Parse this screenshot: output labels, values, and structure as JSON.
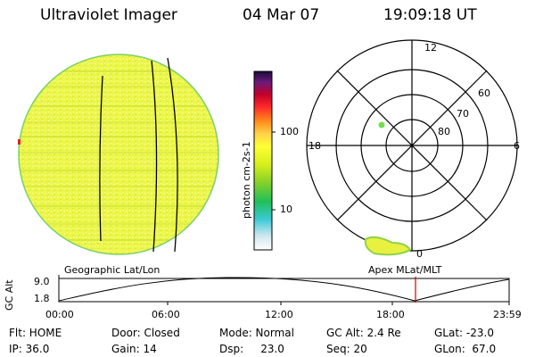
{
  "header": {
    "title": "Ultraviolet Imager",
    "date": "04 Mar 07",
    "time": "19:09:18 UT"
  },
  "colorbar": {
    "label": "photon cm-2s-1",
    "ticks": [
      "100",
      "10"
    ],
    "colors": [
      "#ffffff",
      "#cfe6ee",
      "#3dc9d6",
      "#1fbf5a",
      "#88d12a",
      "#d8ef1a",
      "#ffff33",
      "#ffd24a",
      "#ff8c1a",
      "#ff2a2a",
      "#c4002a",
      "#6b1a7a",
      "#1a0a3a"
    ]
  },
  "polar": {
    "labels": {
      "top": "12",
      "left": "18",
      "right": "6",
      "bottom": "0"
    },
    "rings": [
      "60",
      "70",
      "80"
    ]
  },
  "timeline": {
    "left_label": "Geographic Lat/Lon",
    "right_label": "Apex MLat/MLT",
    "axis_title": "GC Alt",
    "y_max": "9.0",
    "y_min": "1.8",
    "x_ticks": [
      "00:00",
      "06:00",
      "12:00",
      "18:00",
      "23:59"
    ],
    "current_time": "19:09",
    "marker_color": "#d40000"
  },
  "status": {
    "flt": "Flt: HOME",
    "door": "Door: Closed",
    "mode": "Mode: Normal",
    "gcalt": "GC Alt: 2.4 Re",
    "glat": "GLat: -23.0",
    "ip": "IP: 36.0",
    "gain": "Gain: 14",
    "dsp": "Dsp:     23.0",
    "seq": "Seq: 20",
    "glon": "GLon:  67.0"
  }
}
